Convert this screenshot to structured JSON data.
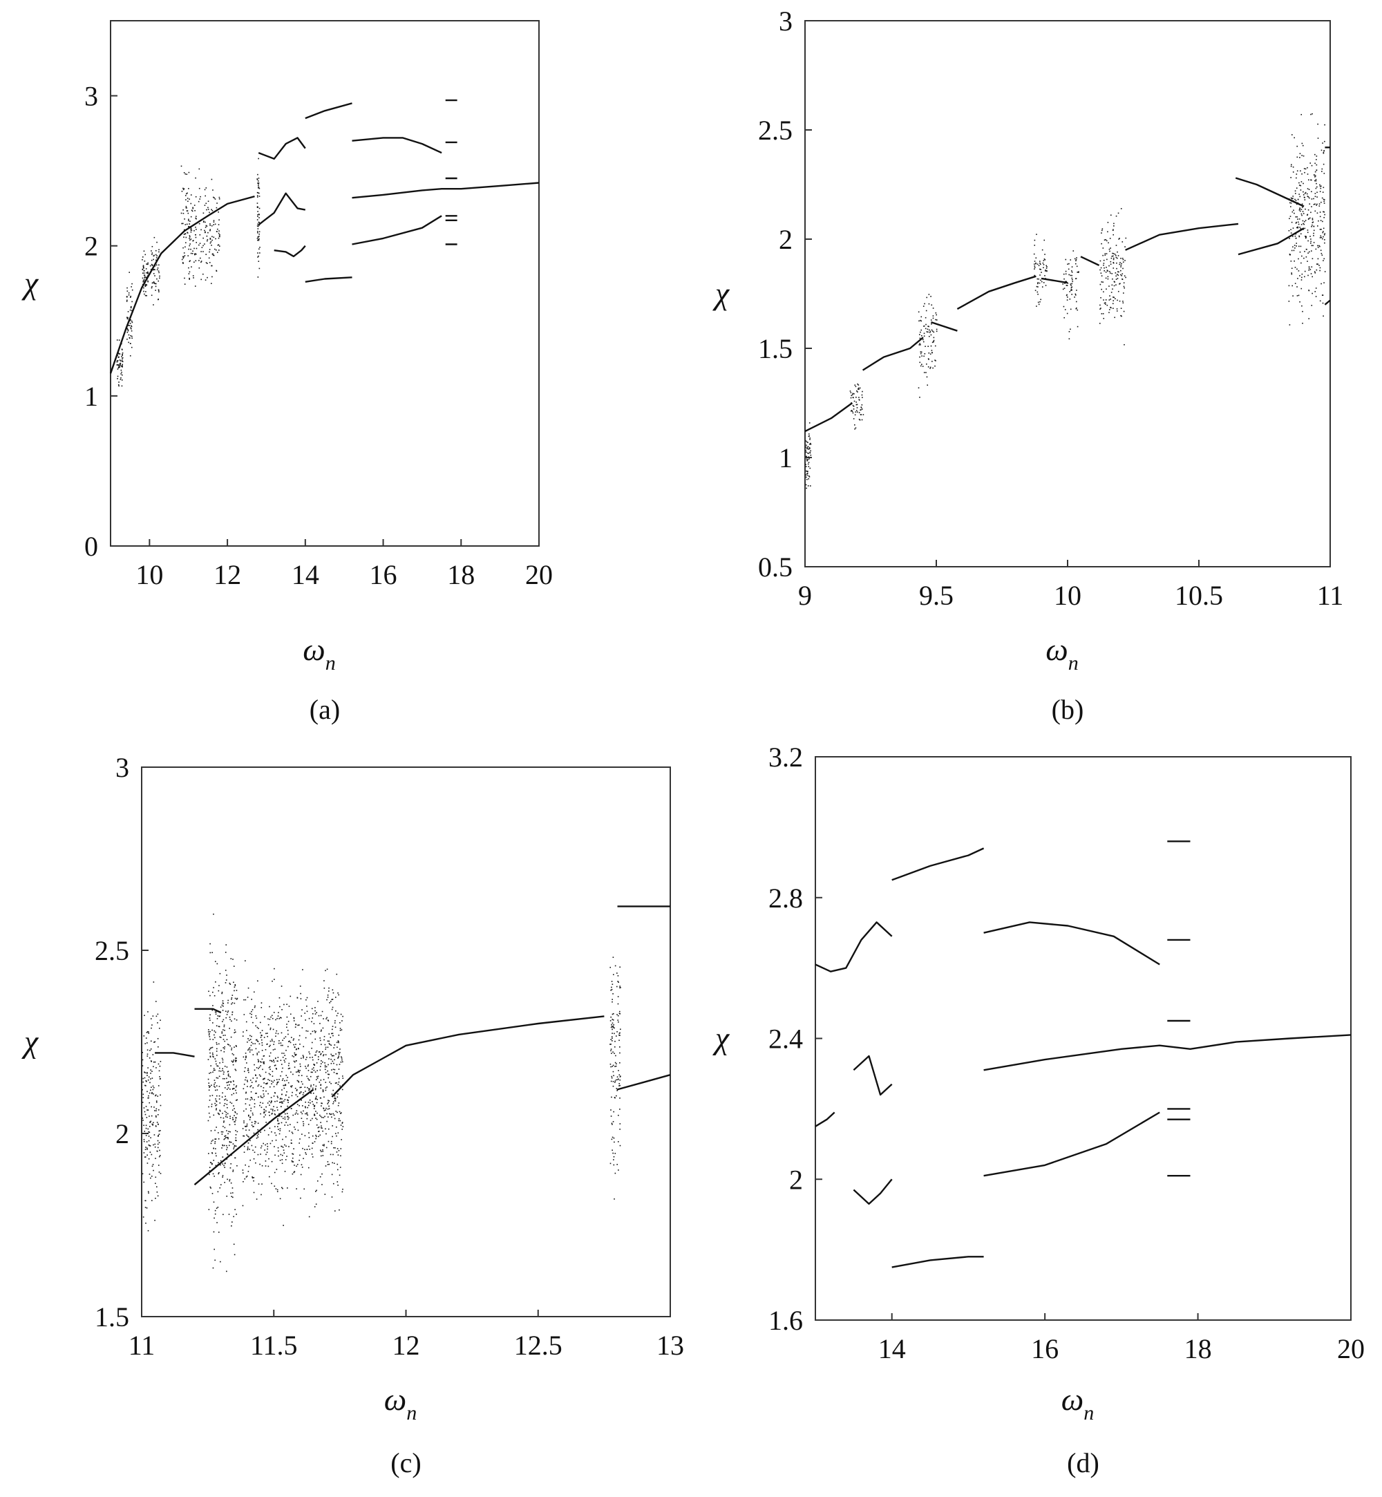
{
  "chart_data": [
    {
      "type": "scatter",
      "panel_label": "(a)",
      "xlabel": "ω",
      "xlabel_sub": "n",
      "ylabel": "χ",
      "xlim": [
        9,
        20
      ],
      "ylim": [
        0,
        3.5
      ],
      "xticks": [
        10,
        12,
        14,
        16,
        18,
        20
      ],
      "yticks": [
        0,
        1,
        2,
        3
      ],
      "grid": false,
      "curves": [
        {
          "x": [
            9.0,
            9.4,
            9.8,
            10.3,
            10.9,
            11.5,
            12.0,
            12.7
          ],
          "y": [
            1.15,
            1.45,
            1.72,
            1.95,
            2.1,
            2.2,
            2.28,
            2.33
          ]
        },
        {
          "x": [
            12.8,
            13.2,
            13.5,
            13.8,
            14.0
          ],
          "y": [
            2.62,
            2.58,
            2.68,
            2.72,
            2.65
          ]
        },
        {
          "x": [
            12.8,
            13.2,
            13.5,
            13.8,
            14.0
          ],
          "y": [
            2.14,
            2.22,
            2.35,
            2.25,
            2.24
          ]
        },
        {
          "x": [
            13.2,
            13.5,
            13.7,
            13.9,
            14.0
          ],
          "y": [
            1.97,
            1.96,
            1.93,
            1.97,
            2.0
          ]
        },
        {
          "x": [
            14.0,
            14.5,
            15.2
          ],
          "y": [
            2.85,
            2.9,
            2.95
          ]
        },
        {
          "x": [
            14.0,
            14.5,
            15.2
          ],
          "y": [
            1.76,
            1.78,
            1.79
          ]
        },
        {
          "x": [
            15.2,
            16.0,
            16.5,
            17.0,
            17.5
          ],
          "y": [
            2.7,
            2.72,
            2.72,
            2.68,
            2.62
          ]
        },
        {
          "x": [
            15.2,
            16.0,
            17.0,
            17.5,
            18.0,
            19.0,
            20.0
          ],
          "y": [
            2.32,
            2.34,
            2.37,
            2.38,
            2.38,
            2.4,
            2.42
          ]
        },
        {
          "x": [
            15.2,
            16.0,
            17.0,
            17.5
          ],
          "y": [
            2.01,
            2.05,
            2.12,
            2.2
          ]
        },
        {
          "x": [
            17.6,
            17.9
          ],
          "y": [
            2.97,
            2.97
          ]
        },
        {
          "x": [
            17.6,
            17.9
          ],
          "y": [
            2.69,
            2.69
          ]
        },
        {
          "x": [
            17.6,
            17.9
          ],
          "y": [
            2.45,
            2.45
          ]
        },
        {
          "x": [
            17.6,
            17.9
          ],
          "y": [
            2.2,
            2.2
          ]
        },
        {
          "x": [
            17.6,
            17.9
          ],
          "y": [
            2.17,
            2.17
          ]
        },
        {
          "x": [
            17.6,
            17.9
          ],
          "y": [
            2.01,
            2.01
          ]
        }
      ],
      "chaotic_bands": [
        {
          "x": [
            9.15,
            9.3
          ],
          "y": [
            1.0,
            1.45
          ]
        },
        {
          "x": [
            9.4,
            9.55
          ],
          "y": [
            1.2,
            1.9
          ]
        },
        {
          "x": [
            9.8,
            9.95
          ],
          "y": [
            1.6,
            2.0
          ]
        },
        {
          "x": [
            10.0,
            10.25
          ],
          "y": [
            1.5,
            2.2
          ]
        },
        {
          "x": [
            10.8,
            11.0
          ],
          "y": [
            1.65,
            2.6
          ]
        },
        {
          "x": [
            11.0,
            11.2
          ],
          "y": [
            1.6,
            2.55
          ]
        },
        {
          "x": [
            11.25,
            11.8
          ],
          "y": [
            1.6,
            2.55
          ]
        },
        {
          "x": [
            12.75,
            12.82
          ],
          "y": [
            1.7,
            2.7
          ]
        }
      ]
    },
    {
      "type": "scatter",
      "panel_label": "(b)",
      "xlabel": "ω",
      "xlabel_sub": "n",
      "ylabel": "χ",
      "xlim": [
        9,
        11
      ],
      "ylim": [
        0.5,
        3
      ],
      "xticks": [
        9,
        9.5,
        10,
        10.5,
        11
      ],
      "yticks": [
        0.5,
        1,
        1.5,
        2,
        2.5,
        3
      ],
      "grid": false,
      "curves": [
        {
          "x": [
            9.0,
            9.1,
            9.18
          ],
          "y": [
            1.12,
            1.18,
            1.25
          ]
        },
        {
          "x": [
            9.22,
            9.3,
            9.4,
            9.45
          ],
          "y": [
            1.4,
            1.46,
            1.5,
            1.55
          ]
        },
        {
          "x": [
            9.48,
            9.58
          ],
          "y": [
            1.62,
            1.58
          ]
        },
        {
          "x": [
            9.58,
            9.7,
            9.8,
            9.88
          ],
          "y": [
            1.68,
            1.76,
            1.8,
            1.83
          ]
        },
        {
          "x": [
            9.9,
            10.0
          ],
          "y": [
            1.82,
            1.8
          ]
        },
        {
          "x": [
            10.05,
            10.12
          ],
          "y": [
            1.92,
            1.88
          ]
        },
        {
          "x": [
            10.22,
            10.35,
            10.5,
            10.65
          ],
          "y": [
            1.95,
            2.02,
            2.05,
            2.07
          ]
        },
        {
          "x": [
            10.65,
            10.8,
            10.9
          ],
          "y": [
            1.93,
            1.98,
            2.05
          ]
        },
        {
          "x": [
            10.64,
            10.72,
            10.9
          ],
          "y": [
            2.28,
            2.25,
            2.15
          ]
        },
        {
          "x": [
            10.98,
            11.0
          ],
          "y": [
            2.42,
            2.42
          ]
        },
        {
          "x": [
            10.98,
            11.0
          ],
          "y": [
            1.7,
            1.72
          ]
        }
      ],
      "chaotic_bands": [
        {
          "x": [
            9.0,
            9.02
          ],
          "y": [
            0.78,
            1.2
          ]
        },
        {
          "x": [
            9.17,
            9.22
          ],
          "y": [
            1.1,
            1.4
          ]
        },
        {
          "x": [
            9.43,
            9.5
          ],
          "y": [
            1.22,
            1.85
          ]
        },
        {
          "x": [
            9.87,
            9.92
          ],
          "y": [
            1.62,
            2.05
          ]
        },
        {
          "x": [
            9.98,
            10.04
          ],
          "y": [
            1.5,
            2.05
          ]
        },
        {
          "x": [
            10.12,
            10.22
          ],
          "y": [
            1.47,
            2.22
          ]
        },
        {
          "x": [
            10.84,
            10.98
          ],
          "y": [
            1.52,
            2.65
          ]
        }
      ]
    },
    {
      "type": "scatter",
      "panel_label": "(c)",
      "xlabel": "ω",
      "xlabel_sub": "n",
      "ylabel": "χ",
      "xlim": [
        11,
        13
      ],
      "ylim": [
        1.5,
        3
      ],
      "xticks": [
        11,
        11.5,
        12,
        12.5,
        13
      ],
      "yticks": [
        1.5,
        2,
        2.5,
        3
      ],
      "grid": false,
      "curves": [
        {
          "x": [
            11.05,
            11.12,
            11.2
          ],
          "y": [
            2.22,
            2.22,
            2.21
          ]
        },
        {
          "x": [
            11.2,
            11.27,
            11.3
          ],
          "y": [
            2.34,
            2.34,
            2.33
          ]
        },
        {
          "x": [
            11.2,
            11.35,
            11.5,
            11.65
          ],
          "y": [
            1.86,
            1.95,
            2.04,
            2.12
          ]
        },
        {
          "x": [
            11.72,
            11.8,
            11.9,
            12.0,
            12.2,
            12.5,
            12.75
          ],
          "y": [
            2.1,
            2.16,
            2.2,
            2.24,
            2.27,
            2.3,
            2.32
          ]
        },
        {
          "x": [
            12.8,
            12.9,
            13.0
          ],
          "y": [
            2.62,
            2.62,
            2.62
          ]
        },
        {
          "x": [
            12.8,
            12.9,
            13.0
          ],
          "y": [
            2.12,
            2.14,
            2.16
          ]
        }
      ],
      "chaotic_bands": [
        {
          "x": [
            11.0,
            11.07
          ],
          "y": [
            1.68,
            2.48
          ]
        },
        {
          "x": [
            11.25,
            11.36
          ],
          "y": [
            1.57,
            2.67
          ]
        },
        {
          "x": [
            11.38,
            11.76
          ],
          "y": [
            1.73,
            2.52
          ]
        },
        {
          "x": [
            12.77,
            12.81
          ],
          "y": [
            1.75,
            2.68
          ]
        }
      ]
    },
    {
      "type": "line",
      "panel_label": "(d)",
      "xlabel": "ω",
      "xlabel_sub": "n",
      "ylabel": "χ",
      "xlim": [
        13,
        20
      ],
      "ylim": [
        1.6,
        3.2
      ],
      "xticks": [
        14,
        16,
        18,
        20
      ],
      "yticks": [
        1.6,
        2,
        2.4,
        2.8,
        3.2
      ],
      "grid": false,
      "curves": [
        {
          "x": [
            13.0,
            13.2,
            13.4,
            13.6,
            13.8,
            14.0
          ],
          "y": [
            2.61,
            2.59,
            2.6,
            2.68,
            2.73,
            2.69
          ]
        },
        {
          "x": [
            13.0,
            13.15,
            13.25
          ],
          "y": [
            2.15,
            2.17,
            2.19
          ]
        },
        {
          "x": [
            13.5,
            13.7,
            13.85,
            14.0
          ],
          "y": [
            2.31,
            2.35,
            2.24,
            2.27
          ]
        },
        {
          "x": [
            13.5,
            13.7,
            13.85,
            14.0
          ],
          "y": [
            1.97,
            1.93,
            1.96,
            2.0
          ]
        },
        {
          "x": [
            14.0,
            14.5,
            15.0,
            15.2
          ],
          "y": [
            2.85,
            2.89,
            2.92,
            2.94
          ]
        },
        {
          "x": [
            14.0,
            14.5,
            15.0,
            15.2
          ],
          "y": [
            1.75,
            1.77,
            1.78,
            1.78
          ]
        },
        {
          "x": [
            15.2,
            15.8,
            16.3,
            16.9,
            17.5
          ],
          "y": [
            2.7,
            2.73,
            2.72,
            2.69,
            2.61
          ]
        },
        {
          "x": [
            15.2,
            16.0,
            17.0,
            17.5,
            17.9,
            18.5,
            19.2,
            20.0
          ],
          "y": [
            2.31,
            2.34,
            2.37,
            2.38,
            2.37,
            2.39,
            2.4,
            2.41
          ]
        },
        {
          "x": [
            15.2,
            16.0,
            16.8,
            17.5
          ],
          "y": [
            2.01,
            2.04,
            2.1,
            2.19
          ]
        },
        {
          "x": [
            17.6,
            17.9
          ],
          "y": [
            2.96,
            2.96
          ]
        },
        {
          "x": [
            17.6,
            17.9
          ],
          "y": [
            2.68,
            2.68
          ]
        },
        {
          "x": [
            17.6,
            17.9
          ],
          "y": [
            2.45,
            2.45
          ]
        },
        {
          "x": [
            17.6,
            17.9
          ],
          "y": [
            2.2,
            2.2
          ]
        },
        {
          "x": [
            17.6,
            17.9
          ],
          "y": [
            2.17,
            2.17
          ]
        },
        {
          "x": [
            17.6,
            17.9
          ],
          "y": [
            2.01,
            2.01
          ]
        }
      ],
      "chaotic_bands": []
    }
  ]
}
